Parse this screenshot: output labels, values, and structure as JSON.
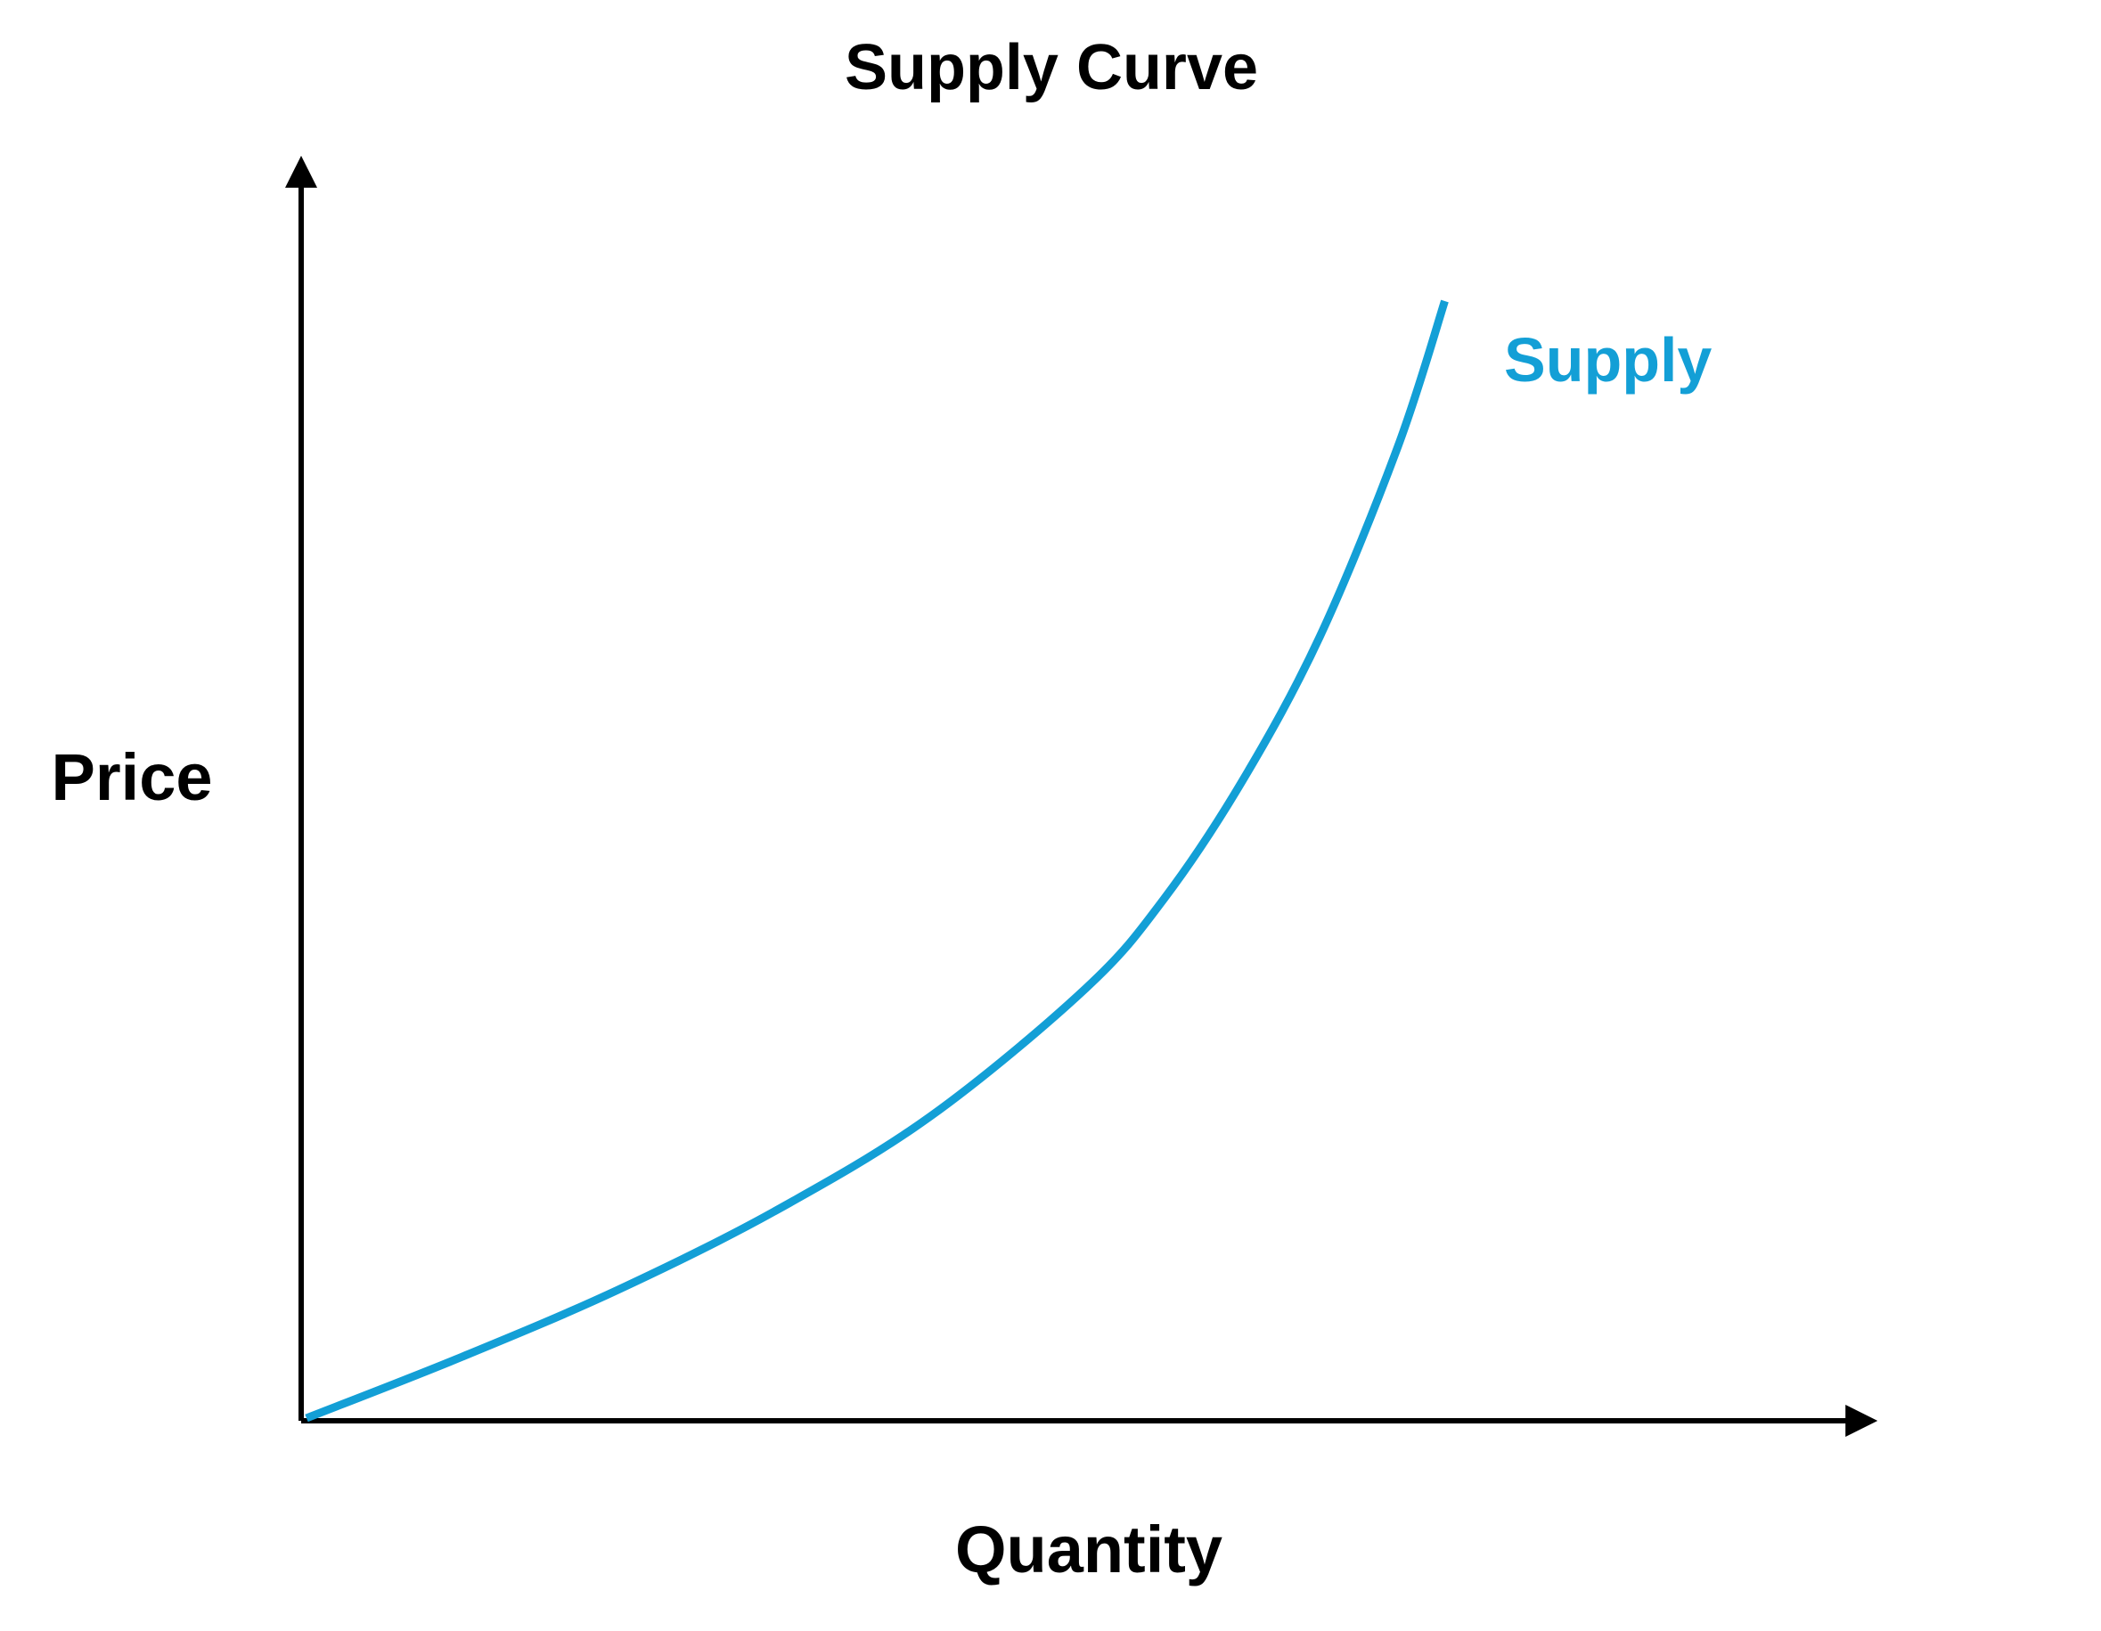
{
  "chart_data": {
    "type": "line",
    "title": "Supply Curve",
    "xlabel": "Quantity",
    "ylabel": "Price",
    "xlim": [
      0,
      100
    ],
    "ylim": [
      0,
      100
    ],
    "grid": false,
    "legend": "none",
    "series": [
      {
        "name": "Supply",
        "color": "#139FD6",
        "x": [
          0,
          10,
          20,
          30,
          40,
          50,
          55,
          60,
          65,
          70,
          73
        ],
        "y": [
          0,
          5.5,
          11.5,
          18.5,
          27,
          38.5,
          46.5,
          57,
          70,
          87,
          100
        ]
      }
    ],
    "axis_color": "#000000"
  }
}
